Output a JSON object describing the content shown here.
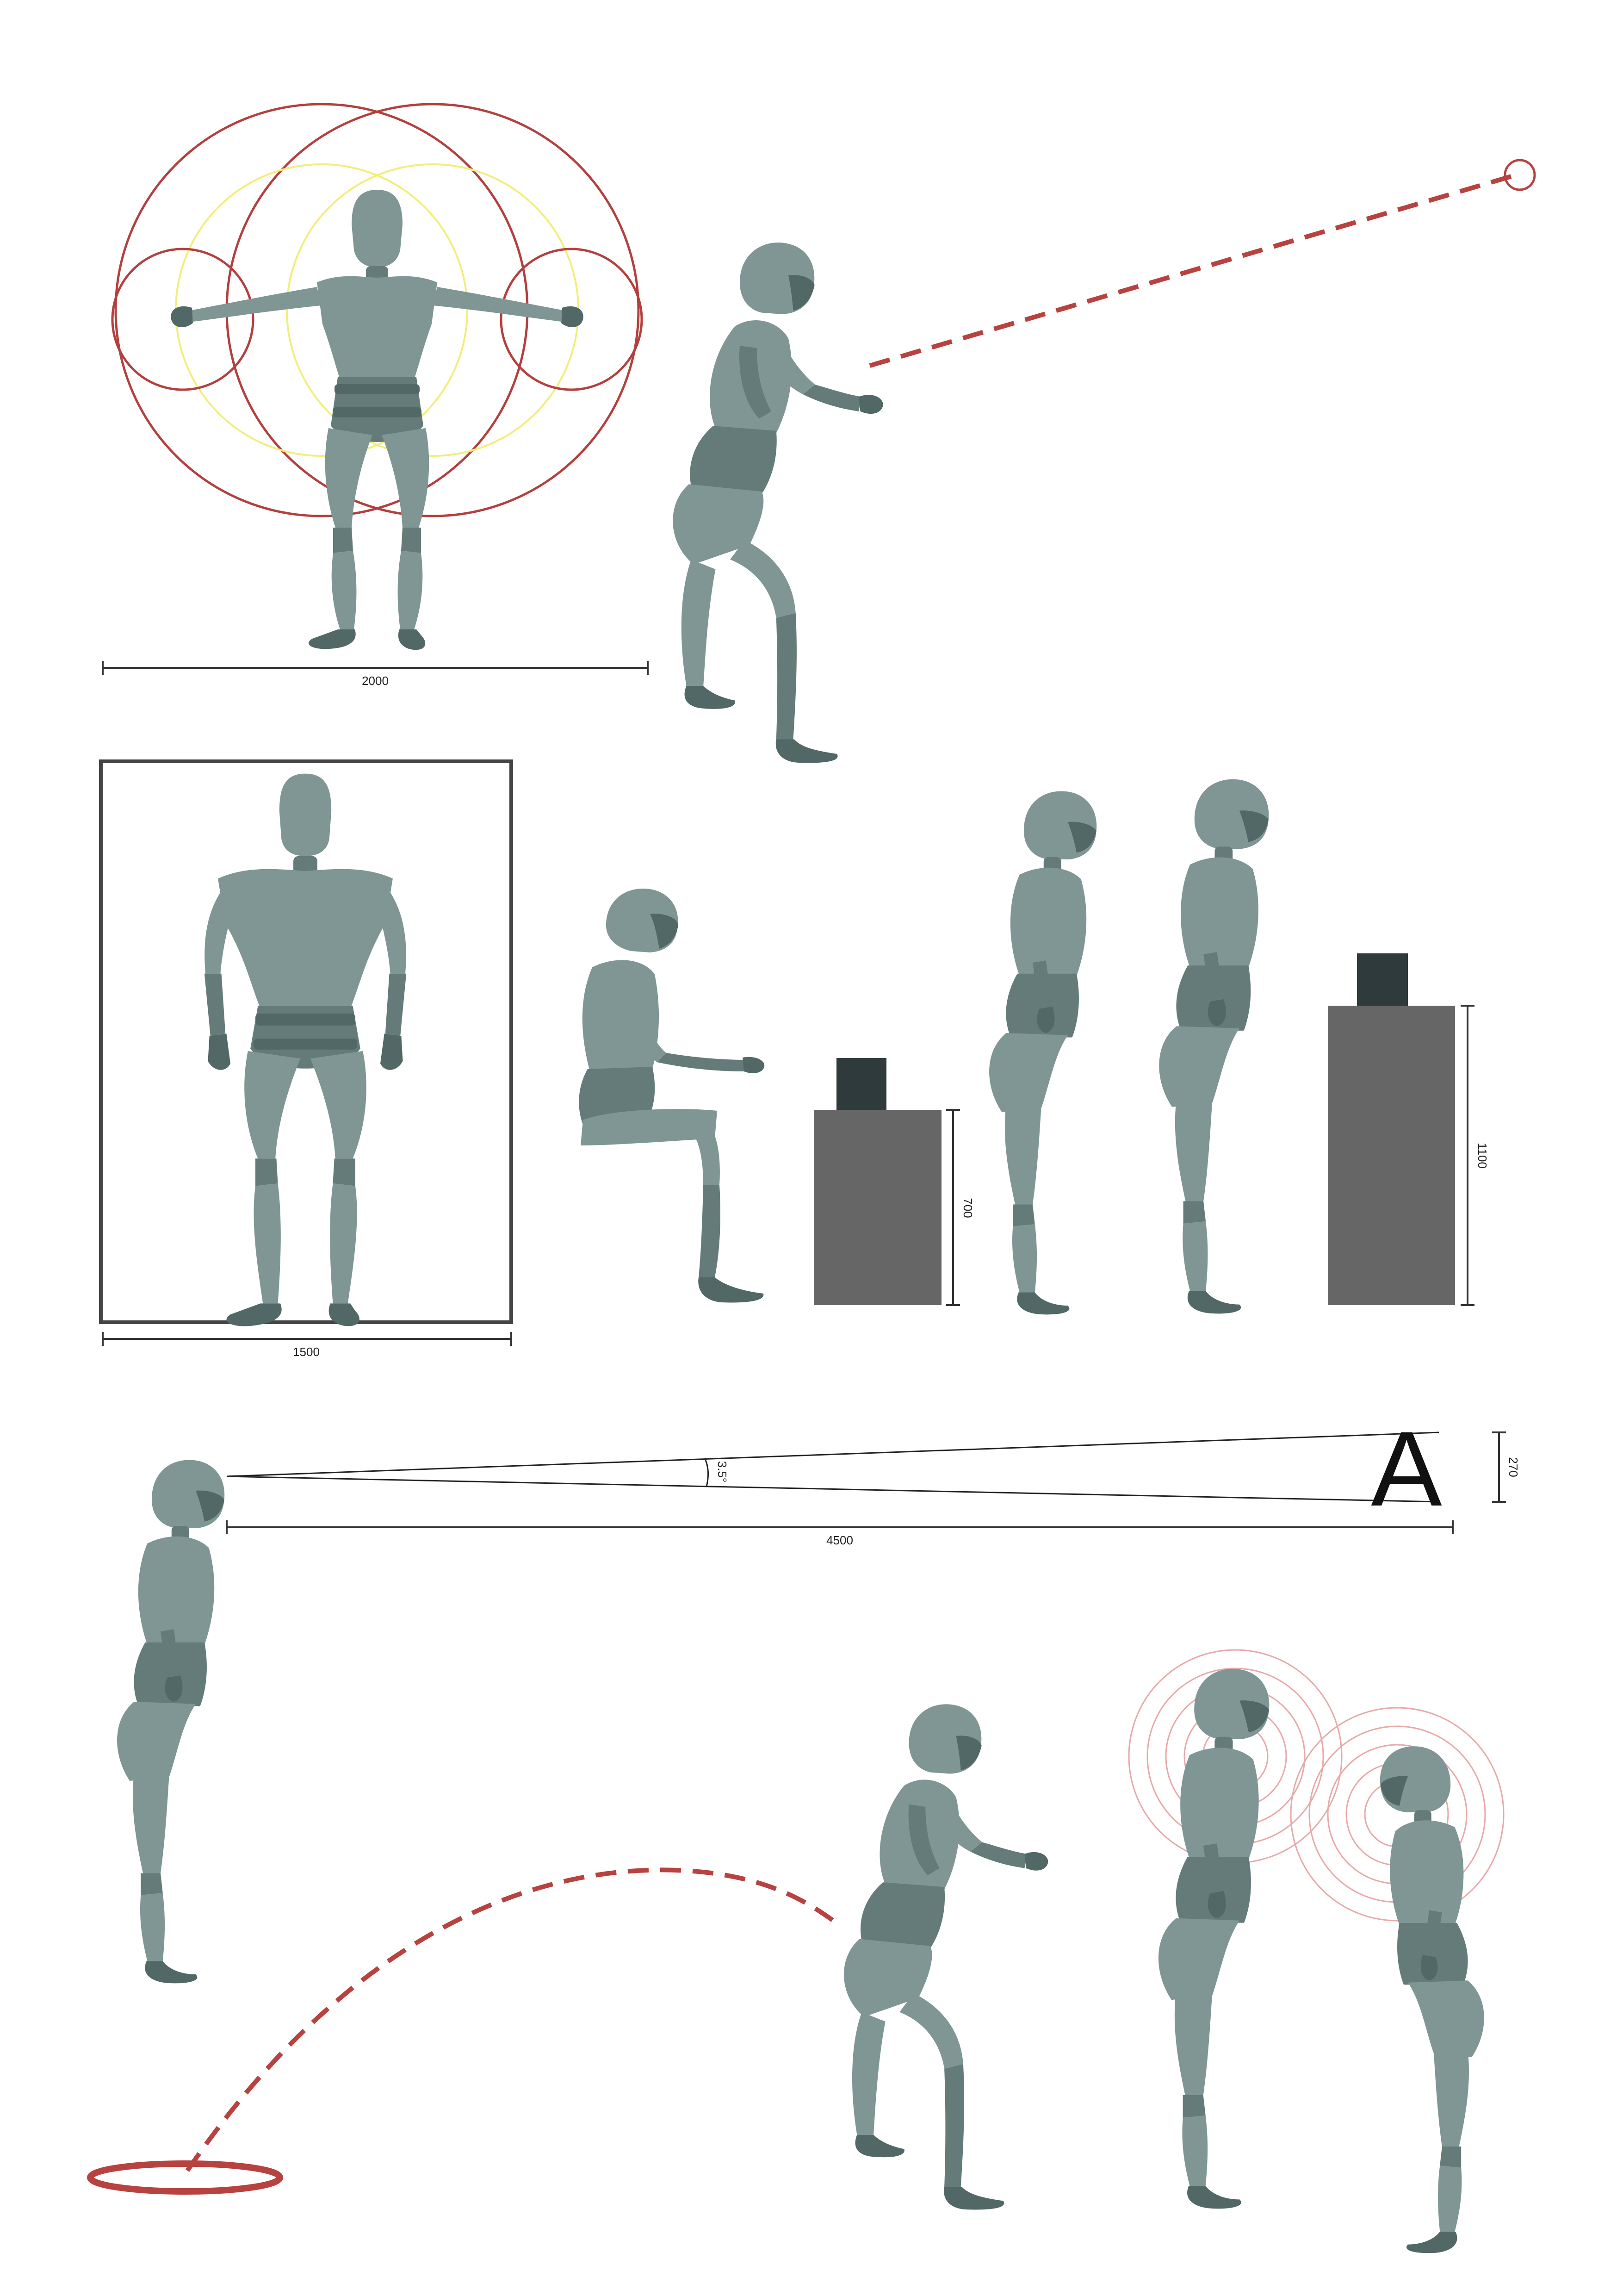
{
  "colors": {
    "figure": "#7f9694",
    "figure_shade": "#5e7472",
    "figure_dark": "#4f6462",
    "reach_circle": "#b3403e",
    "comfort_circle": "#f2ee7a",
    "dimension_line": "#333333",
    "counter_body": "#666666",
    "counter_top": "#2e3a3b",
    "frame": "#444444",
    "throw_path": "#b8423f",
    "voice_ring": "#e8a8a8"
  },
  "dimensions": {
    "arm_span": "2000",
    "frame_width": "1500",
    "seated_counter_height": "700",
    "standing_counter_height": "1100",
    "viewing_distance": "4500",
    "letter_height": "270",
    "view_angle": "3.5°"
  },
  "sign": {
    "letter": "A"
  },
  "icons": {
    "mannequin": "human-figure-icon",
    "target": "target-circle-icon",
    "landing": "landing-ring-icon"
  }
}
